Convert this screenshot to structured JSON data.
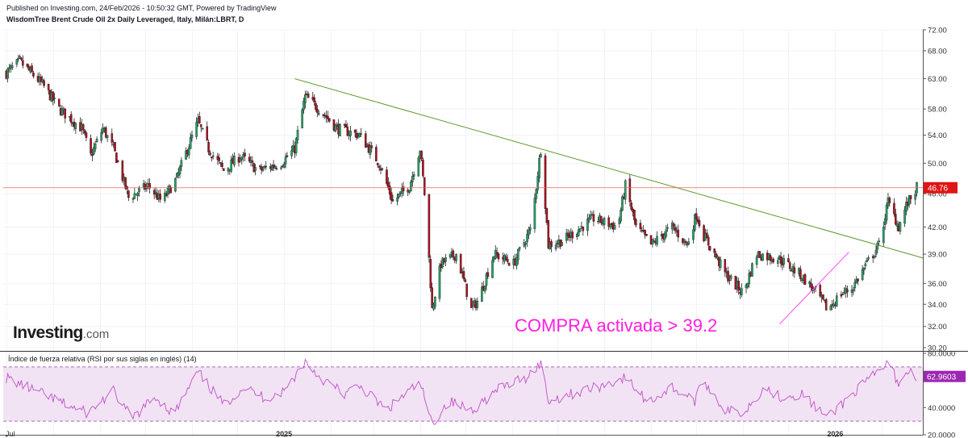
{
  "header": {
    "published": "Published on Investing.com, 24/Feb/2026 - 10:50:32 GMT, Powered by TradingView",
    "symbol": "WisdomTree Brent Crude Oil 2x Daily Leveraged, Italy, Milán:LBRT, D"
  },
  "logo": {
    "main": "Investing",
    "domain": ".com"
  },
  "annotation": "COMPRA activada > 39.2",
  "colors": {
    "up": "#26a269",
    "down": "#b01020",
    "trendline": "#5a9a2a",
    "signal_line": "#ff44ff",
    "price_line": "#f06060",
    "rsi_line": "#c050c8",
    "rsi_band": "#f1e3f4"
  },
  "rsi": {
    "title": "Índice de fuerza relativa (RSI por sus siglas en inglés) (14)"
  },
  "chart_data": [
    {
      "type": "candlestick",
      "x_labels": [
        "Jul",
        "2025",
        "2026"
      ],
      "y_ticks": [
        "72.00",
        "68.00",
        "63.00",
        "58.00",
        "54.00",
        "50.00",
        "46.00",
        "42.00",
        "39.00",
        "36.00",
        "34.00",
        "32.00",
        "30.20"
      ],
      "scale": "log",
      "ylim": [
        30.2,
        72.0
      ],
      "last_price": "46.76",
      "anchors": [
        [
          "2024-07-01",
          64.0
        ],
        [
          "2024-07-10",
          66.0
        ],
        [
          "2024-07-25",
          62.0
        ],
        [
          "2024-08-05",
          58.0
        ],
        [
          "2024-08-20",
          55.0
        ],
        [
          "2024-08-26",
          51.0
        ],
        [
          "2024-09-03",
          55.0
        ],
        [
          "2024-09-10",
          52.0
        ],
        [
          "2024-09-20",
          45.5
        ],
        [
          "2024-10-03",
          47.0
        ],
        [
          "2024-10-12",
          45.0
        ],
        [
          "2024-10-22",
          48.0
        ],
        [
          "2024-11-05",
          56.0
        ],
        [
          "2024-11-12",
          52.0
        ],
        [
          "2024-11-22",
          49.0
        ],
        [
          "2024-12-03",
          51.0
        ],
        [
          "2024-12-15",
          49.0
        ],
        [
          "2024-12-30",
          50.0
        ],
        [
          "2025-01-08",
          52.0
        ],
        [
          "2025-01-15",
          60.0
        ],
        [
          "2025-01-24",
          58.0
        ],
        [
          "2025-02-05",
          55.0
        ],
        [
          "2025-02-20",
          54.0
        ],
        [
          "2025-03-05",
          50.0
        ],
        [
          "2025-03-14",
          45.0
        ],
        [
          "2025-03-25",
          47.0
        ],
        [
          "2025-04-01",
          52.0
        ],
        [
          "2025-04-04",
          46.0
        ],
        [
          "2025-04-09",
          33.5
        ],
        [
          "2025-04-15",
          38.0
        ],
        [
          "2025-04-25",
          39.0
        ],
        [
          "2025-05-05",
          33.5
        ],
        [
          "2025-05-10",
          34.5
        ],
        [
          "2025-05-20",
          39.0
        ],
        [
          "2025-06-02",
          38.0
        ],
        [
          "2025-06-14",
          42.0
        ],
        [
          "2025-06-20",
          52.0
        ],
        [
          "2025-06-25",
          40.0
        ],
        [
          "2025-07-05",
          40.5
        ],
        [
          "2025-07-25",
          43.0
        ],
        [
          "2025-08-10",
          42.0
        ],
        [
          "2025-08-15",
          47.0
        ],
        [
          "2025-08-22",
          42.0
        ],
        [
          "2025-09-01",
          40.0
        ],
        [
          "2025-09-15",
          42.0
        ],
        [
          "2025-09-25",
          40.0
        ],
        [
          "2025-10-01",
          43.5
        ],
        [
          "2025-10-06",
          41.0
        ],
        [
          "2025-10-20",
          37.0
        ],
        [
          "2025-11-01",
          35.0
        ],
        [
          "2025-11-10",
          39.0
        ],
        [
          "2025-11-25",
          38.5
        ],
        [
          "2025-12-08",
          37.0
        ],
        [
          "2025-12-20",
          35.0
        ],
        [
          "2025-12-27",
          33.5
        ],
        [
          "2026-01-05",
          35.0
        ],
        [
          "2026-01-12",
          35.5
        ],
        [
          "2026-01-20",
          37.5
        ],
        [
          "2026-01-30",
          40.0
        ],
        [
          "2026-02-05",
          45.0
        ],
        [
          "2026-02-12",
          42.0
        ],
        [
          "2026-02-17",
          44.5
        ],
        [
          "2026-02-24",
          46.76
        ]
      ],
      "trendlines": [
        {
          "from": [
            "2025-01-08",
            63.0
          ],
          "to": [
            "2026-02-28",
            38.6
          ]
        },
        {
          "from": [
            "2025-11-25",
            32.2
          ],
          "to": [
            "2026-01-10",
            39.2
          ]
        }
      ]
    },
    {
      "type": "line",
      "name": "RSI",
      "y_ticks": [
        "80.0000",
        "40.0000",
        "20.0000"
      ],
      "band": [
        30,
        70
      ],
      "ylim": [
        20,
        80
      ],
      "last_value": "62.9603",
      "anchors": [
        [
          "2024-07-01",
          62
        ],
        [
          "2024-07-15",
          55
        ],
        [
          "2024-08-10",
          42
        ],
        [
          "2024-08-24",
          36
        ],
        [
          "2024-09-10",
          52
        ],
        [
          "2024-09-22",
          32
        ],
        [
          "2024-10-08",
          48
        ],
        [
          "2024-10-20",
          35
        ],
        [
          "2024-11-05",
          66
        ],
        [
          "2024-11-22",
          42
        ],
        [
          "2024-12-05",
          55
        ],
        [
          "2024-12-20",
          47
        ],
        [
          "2025-01-01",
          52
        ],
        [
          "2025-01-15",
          74
        ],
        [
          "2025-01-25",
          62
        ],
        [
          "2025-02-10",
          50
        ],
        [
          "2025-02-20",
          56
        ],
        [
          "2025-03-10",
          38
        ],
        [
          "2025-03-20",
          48
        ],
        [
          "2025-04-01",
          58
        ],
        [
          "2025-04-09",
          28
        ],
        [
          "2025-04-20",
          45
        ],
        [
          "2025-05-05",
          38
        ],
        [
          "2025-05-25",
          55
        ],
        [
          "2025-06-10",
          62
        ],
        [
          "2025-06-20",
          73
        ],
        [
          "2025-06-25",
          45
        ],
        [
          "2025-07-10",
          50
        ],
        [
          "2025-07-30",
          56
        ],
        [
          "2025-08-15",
          62
        ],
        [
          "2025-08-30",
          44
        ],
        [
          "2025-09-15",
          55
        ],
        [
          "2025-09-30",
          45
        ],
        [
          "2025-10-06",
          60
        ],
        [
          "2025-10-20",
          38
        ],
        [
          "2025-11-01",
          36
        ],
        [
          "2025-11-15",
          55
        ],
        [
          "2025-11-25",
          48
        ],
        [
          "2025-12-10",
          50
        ],
        [
          "2025-12-27",
          32
        ],
        [
          "2026-01-10",
          48
        ],
        [
          "2026-01-25",
          62
        ],
        [
          "2026-02-05",
          73
        ],
        [
          "2026-02-12",
          58
        ],
        [
          "2026-02-18",
          67
        ],
        [
          "2026-02-24",
          62.96
        ]
      ]
    }
  ]
}
